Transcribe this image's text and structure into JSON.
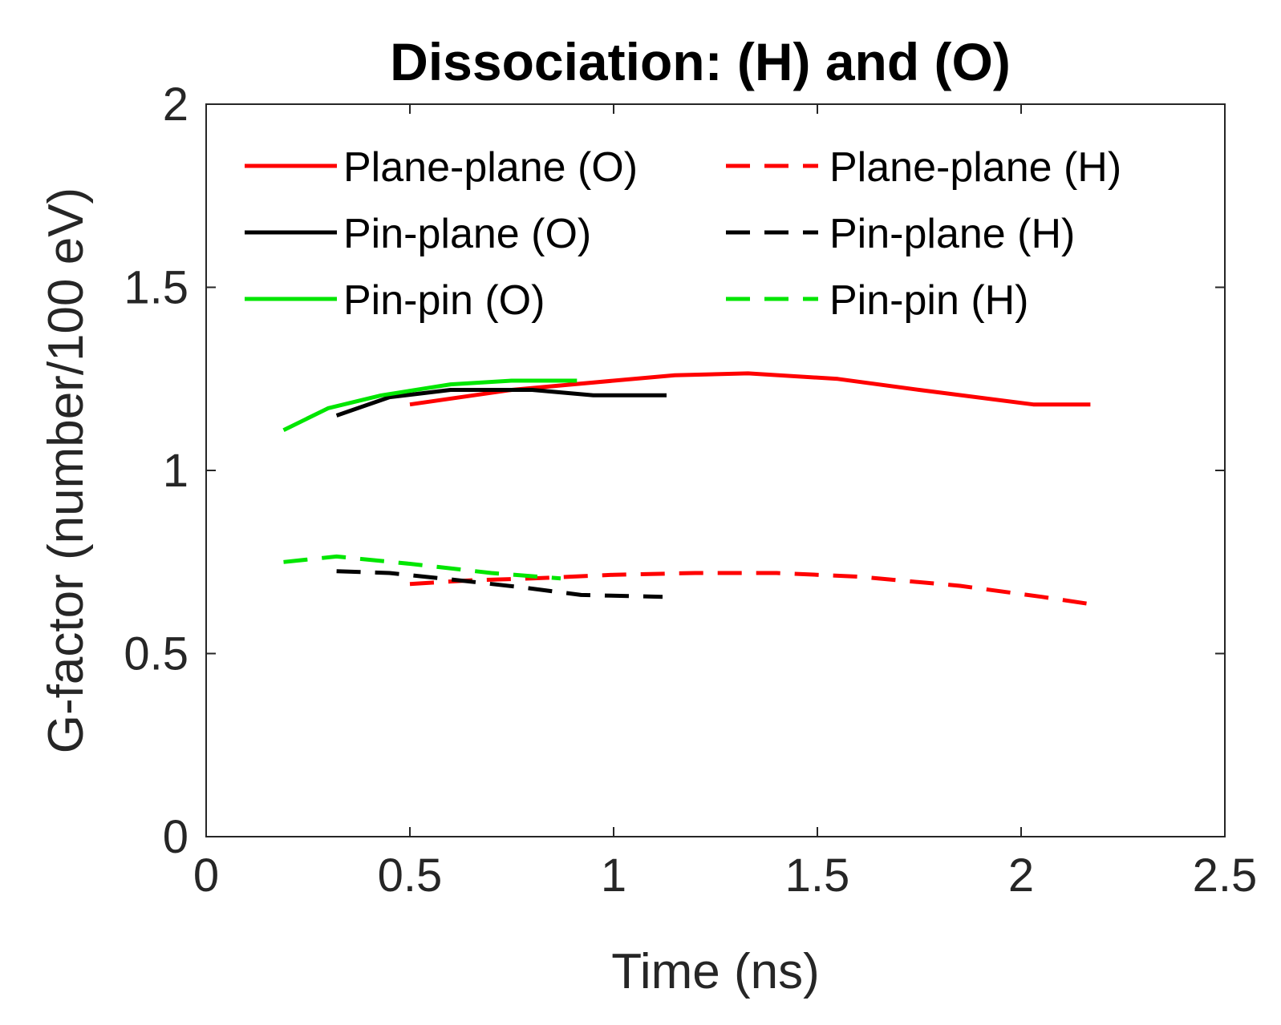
{
  "chart_data": {
    "type": "line",
    "title": "Dissociation: (H) and (O)",
    "xlabel": "Time (ns)",
    "ylabel": "G-factor (number/100 eV)",
    "xlim": [
      0,
      2.5
    ],
    "ylim": [
      0,
      2
    ],
    "xticks": [
      "0",
      "0.5",
      "1",
      "1.5",
      "2",
      "2.5"
    ],
    "yticks": [
      "0",
      "0.5",
      "1",
      "1.5",
      "2"
    ],
    "xtick_values": [
      0,
      0.5,
      1,
      1.5,
      2,
      2.5
    ],
    "ytick_values": [
      0,
      0.5,
      1,
      1.5,
      2
    ],
    "grid": false,
    "legend_position": "top",
    "series": [
      {
        "name": "Plane-plane (O)",
        "color": "#ff0000",
        "style": "solid",
        "x": [
          0.5,
          0.75,
          1.0,
          1.15,
          1.33,
          1.55,
          1.75,
          2.03,
          2.17
        ],
        "y": [
          1.18,
          1.22,
          1.245,
          1.26,
          1.265,
          1.25,
          1.22,
          1.18,
          1.18
        ]
      },
      {
        "name": "Pin-plane (O)",
        "color": "#000000",
        "style": "solid",
        "x": [
          0.32,
          0.45,
          0.6,
          0.8,
          0.95,
          1.13
        ],
        "y": [
          1.15,
          1.2,
          1.22,
          1.22,
          1.205,
          1.205
        ]
      },
      {
        "name": "Pin-pin (O)",
        "color": "#00e600",
        "style": "solid",
        "x": [
          0.19,
          0.3,
          0.43,
          0.6,
          0.75,
          0.91
        ],
        "y": [
          1.11,
          1.17,
          1.205,
          1.235,
          1.245,
          1.245
        ]
      },
      {
        "name": "Plane-plane (H)",
        "color": "#ff0000",
        "style": "dashed",
        "x": [
          0.5,
          0.65,
          0.8,
          1.0,
          1.2,
          1.4,
          1.6,
          1.85,
          2.05,
          2.17
        ],
        "y": [
          0.69,
          0.7,
          0.705,
          0.715,
          0.72,
          0.72,
          0.71,
          0.685,
          0.655,
          0.635
        ]
      },
      {
        "name": "Pin-plane (H)",
        "color": "#000000",
        "style": "dashed",
        "x": [
          0.32,
          0.45,
          0.62,
          0.78,
          0.92,
          1.12
        ],
        "y": [
          0.725,
          0.72,
          0.7,
          0.68,
          0.66,
          0.655
        ]
      },
      {
        "name": "Pin-pin (H)",
        "color": "#00e600",
        "style": "dashed",
        "x": [
          0.19,
          0.32,
          0.5,
          0.7,
          0.87
        ],
        "y": [
          0.75,
          0.765,
          0.745,
          0.72,
          0.705
        ]
      }
    ]
  }
}
